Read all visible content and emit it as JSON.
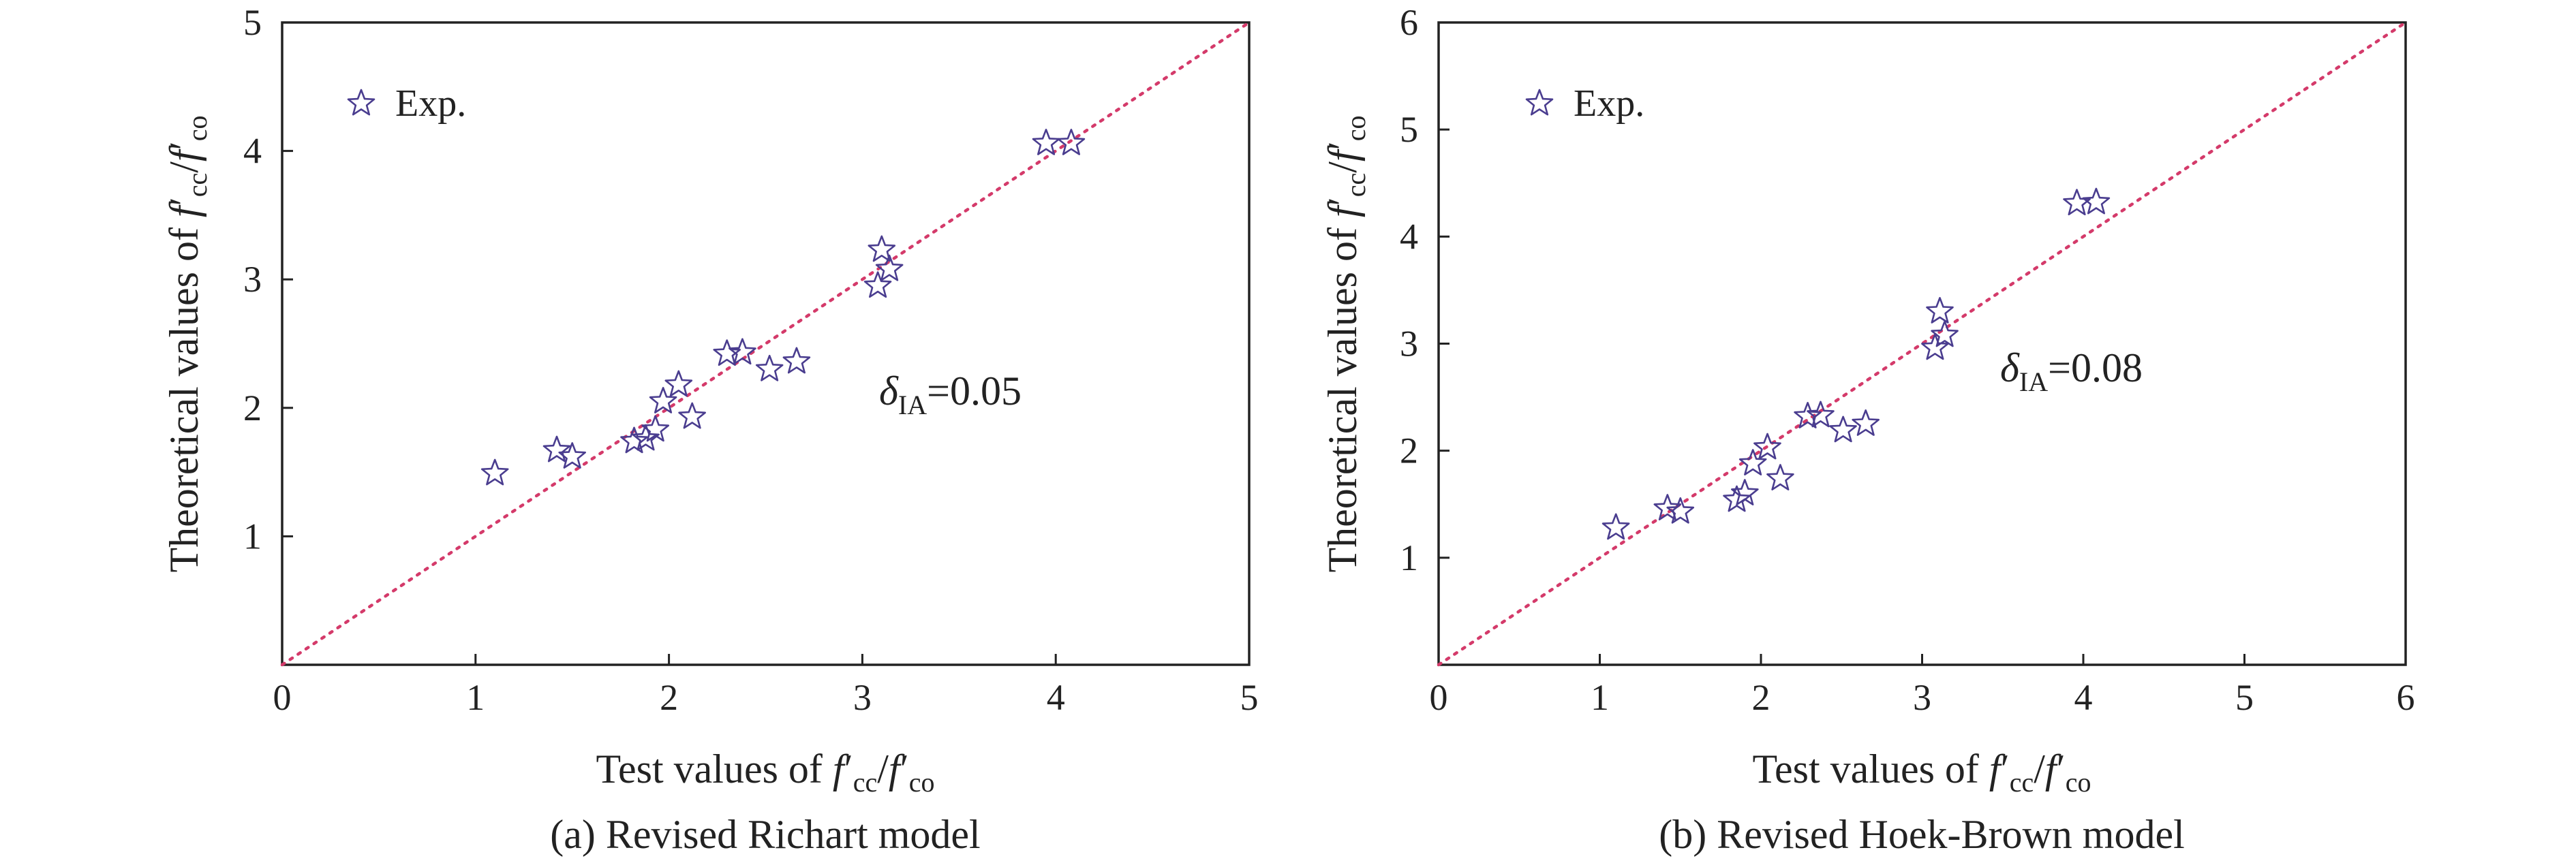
{
  "chart_data": [
    {
      "type": "scatter",
      "caption": "(a) Revised Richart model",
      "xlabel": {
        "prefix": "Test values of ",
        "num_base": "f",
        "num_prime": "′",
        "num_sub": "cc",
        "slash": "/",
        "den_base": "f",
        "den_prime": "′",
        "den_sub": "co"
      },
      "ylabel": {
        "prefix": "Theoretical values of ",
        "num_base": "f",
        "num_prime": "′",
        "num_sub": "cc",
        "slash": "/",
        "den_base": "f",
        "den_prime": "′",
        "den_sub": "co"
      },
      "xlim": [
        0,
        5
      ],
      "ylim": [
        0,
        5
      ],
      "xticks": [
        "0",
        "1",
        "2",
        "3",
        "4",
        "5"
      ],
      "yticks": [
        "1",
        "2",
        "3",
        "4",
        "5"
      ],
      "legend": {
        "label": "Exp.",
        "position": "top-left"
      },
      "annotation": {
        "symbol": "δ",
        "sub": "IA",
        "value": "=0.05"
      },
      "reference_line": {
        "x": [
          0,
          5
        ],
        "y": [
          0,
          5
        ],
        "color": "#d43a6a"
      },
      "marker_color": "#4a3d8f",
      "series": [
        {
          "name": "Exp.",
          "x": [
            1.1,
            1.42,
            1.5,
            1.82,
            1.88,
            1.93,
            1.97,
            2.05,
            2.12,
            2.3,
            2.38,
            2.52,
            2.66,
            3.08,
            3.1,
            3.14,
            3.95,
            4.08
          ],
          "y": [
            1.49,
            1.67,
            1.62,
            1.74,
            1.76,
            1.83,
            2.05,
            2.18,
            1.93,
            2.42,
            2.43,
            2.3,
            2.36,
            2.95,
            3.23,
            3.08,
            4.06,
            4.06
          ]
        }
      ]
    },
    {
      "type": "scatter",
      "caption": "(b) Revised Hoek-Brown model",
      "xlabel": {
        "prefix": "Test values of ",
        "num_base": "f",
        "num_prime": "′",
        "num_sub": "cc",
        "slash": "/",
        "den_base": "f",
        "den_prime": "′",
        "den_sub": "co"
      },
      "ylabel": {
        "prefix": "Theoretical values of ",
        "num_base": "f",
        "num_prime": "′",
        "num_sub": "cc",
        "slash": "/",
        "den_base": "f",
        "den_prime": "′",
        "den_sub": "co"
      },
      "xlim": [
        0,
        6
      ],
      "ylim": [
        0,
        6
      ],
      "xticks": [
        "0",
        "1",
        "2",
        "3",
        "4",
        "5",
        "6"
      ],
      "yticks": [
        "1",
        "2",
        "3",
        "4",
        "5",
        "6"
      ],
      "legend": {
        "label": "Exp.",
        "position": "top-left"
      },
      "annotation": {
        "symbol": "δ",
        "sub": "IA",
        "value": "=0.08"
      },
      "reference_line": {
        "x": [
          0,
          6
        ],
        "y": [
          0,
          6
        ],
        "color": "#d43a6a"
      },
      "marker_color": "#4a3d8f",
      "series": [
        {
          "name": "Exp.",
          "x": [
            1.1,
            1.42,
            1.5,
            1.85,
            1.9,
            1.95,
            2.04,
            2.12,
            2.29,
            2.37,
            2.51,
            2.65,
            3.08,
            3.11,
            3.14,
            3.96,
            4.08
          ],
          "y": [
            1.28,
            1.46,
            1.43,
            1.54,
            1.6,
            1.88,
            2.03,
            1.74,
            2.32,
            2.33,
            2.19,
            2.25,
            2.96,
            3.3,
            3.08,
            4.31,
            4.32
          ]
        }
      ]
    }
  ]
}
